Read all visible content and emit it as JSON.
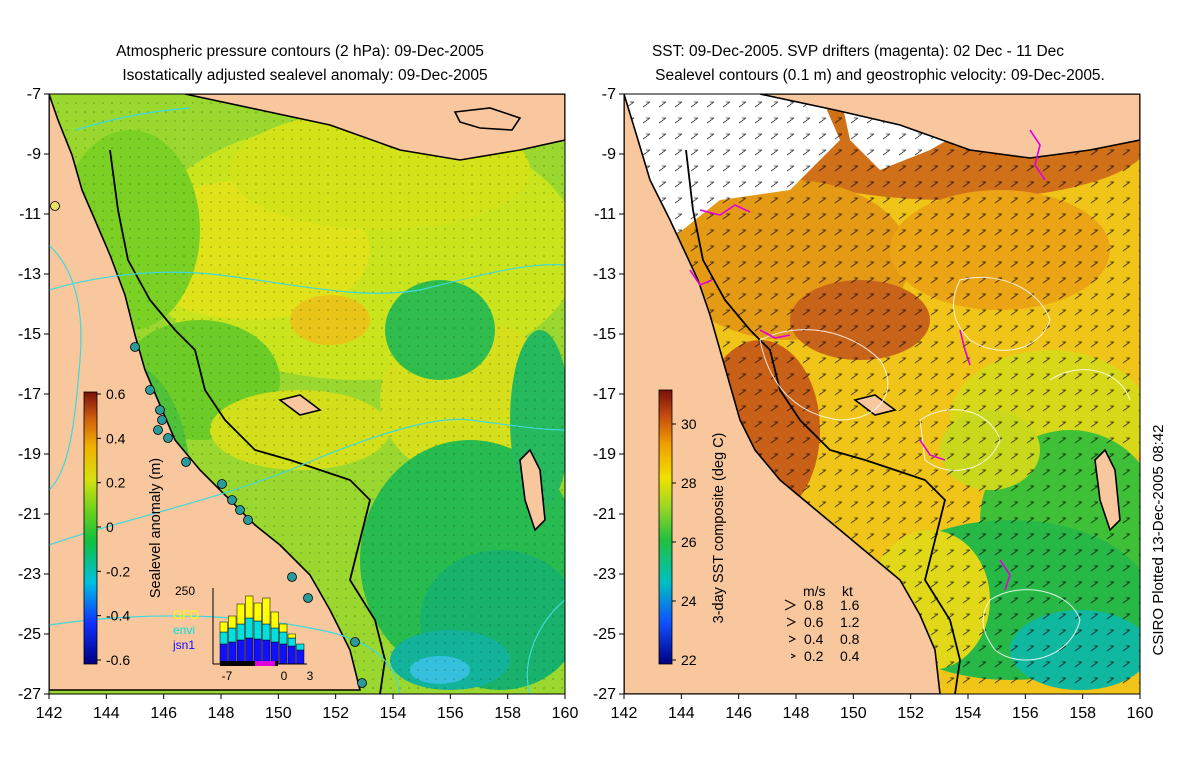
{
  "left_panel": {
    "title_line1": "Atmospheric pressure contours (2 hPa): 09-Dec-2005",
    "title_line2": "Isostatically adjusted sealevel anomaly: 09-Dec-2005",
    "x_ticks": [
      "142",
      "144",
      "146",
      "148",
      "150",
      "152",
      "154",
      "156",
      "158",
      "160"
    ],
    "y_ticks": [
      "-7",
      "-9",
      "-11",
      "-13",
      "-15",
      "-17",
      "-19",
      "-21",
      "-23",
      "-25",
      "-27"
    ],
    "colorbar": {
      "label": "Sealevel anomaly (m)",
      "ticks": [
        "0.6",
        "0.4",
        "0.2",
        "0",
        "-0.2",
        "-0.4",
        "-0.6"
      ]
    },
    "inset": {
      "ymax_label": "250",
      "legend": [
        {
          "name": "GFO",
          "color": "#ffff00"
        },
        {
          "name": "envi",
          "color": "#00e0e0"
        },
        {
          "name": "jsn1",
          "color": "#1010ff"
        }
      ],
      "x_ticks": [
        "-7",
        "0",
        "3"
      ]
    }
  },
  "right_panel": {
    "title_line1": "SST: 09-Dec-2005. SVP drifters (magenta): 02 Dec - 11 Dec",
    "title_line2": "Sealevel contours (0.1 m) and geostrophic velocity: 09-Dec-2005.",
    "x_ticks": [
      "142",
      "144",
      "146",
      "148",
      "150",
      "152",
      "154",
      "156",
      "158",
      "160"
    ],
    "y_ticks": [
      "-7",
      "-9",
      "-11",
      "-13",
      "-15",
      "-17",
      "-19",
      "-21",
      "-23",
      "-25",
      "-27"
    ],
    "colorbar": {
      "label": "3-day SST composite (deg C)",
      "ticks": [
        "30",
        "28",
        "26",
        "24",
        "22"
      ]
    },
    "speed_legend": {
      "header_ms": "m/s",
      "header_kt": "kt",
      "rows": [
        {
          "ms": "0.8",
          "kt": "1.6"
        },
        {
          "ms": "0.6",
          "kt": "1.2"
        },
        {
          "ms": "0.4",
          "kt": "0.8"
        },
        {
          "ms": "0.2",
          "kt": "0.4"
        }
      ]
    },
    "credit": "CSIRO Plotted 13-Dec-2005 08:42"
  },
  "colors": {
    "land": "#f9c79e",
    "coast": "#000000",
    "contour": "#3fd9dc",
    "sst_contour": "#ffffff",
    "drifter": "#e000e0"
  }
}
